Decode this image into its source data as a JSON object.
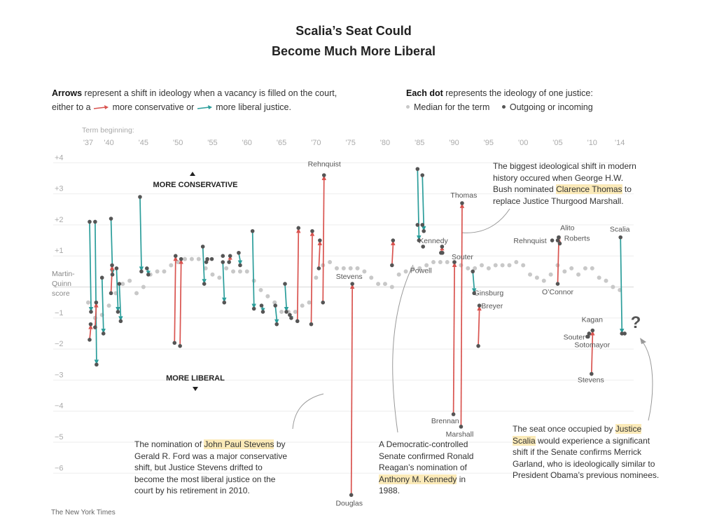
{
  "title_line1": "Scalia’s Seat Could",
  "title_line2": "Become Much More Liberal",
  "legend": {
    "arrows_bold": "Arrows",
    "arrows_text1": " represent a shift in ideology when a vacancy is filled on the court,",
    "arrows_text2a": "either to a",
    "arrows_conservative": "more conservative or",
    "arrows_liberal": "more liberal justice.",
    "dots_bold": "Each dot",
    "dots_text": " represents the ideology of one justice:",
    "median_label": "Median for the term",
    "outgoing_label": "Outgoing or incoming"
  },
  "colors": {
    "conservative": "#d9534f",
    "liberal": "#2a9d9a",
    "median_dot": "#c8c8c8",
    "justice_dot": "#555555"
  },
  "annotations": {
    "thomas_note_pre": "The biggest ideological shift in modern history occured when George H.W. Bush nominated ",
    "thomas_note_hl": "Clarence Thomas",
    "thomas_note_post": " to replace Justice Thurgood Marshall.",
    "stevens_note_pre": "The nomination of ",
    "stevens_note_hl": "John Paul Stevens",
    "stevens_note_post": " by Gerald R. Ford was a major conservative shift, but Justice Stevens drifted to become the most liberal justice on the court by his retirement in 2010.",
    "kennedy_note_pre": "A Democratic-controlled Senate confirmed Ronald Reagan’s nomination of ",
    "kennedy_note_hl": "Anthony M. Kennedy",
    "kennedy_note_post": " in 1988.",
    "scalia_note_pre": "The seat once occupied by ",
    "scalia_note_hl": "Justice Scalia",
    "scalia_note_post": " would experience a significant shift if the Senate confirms Merrick Garland, who is ideologically similar to President Obama’s previous nominees."
  },
  "credit": "The New York Times",
  "chart_data": {
    "type": "scatter",
    "x_axis_title": "Term beginning:",
    "y_axis_title_line1": "Martin-",
    "y_axis_title_line2": "Quinn",
    "y_axis_title_line3": "score",
    "more_conservative": "MORE CONSERVATIVE",
    "more_liberal": "MORE LIBERAL",
    "question_mark": "?",
    "x_range": [
      1937,
      2015
    ],
    "y_range": [
      -6.3,
      4.2
    ],
    "x_ticks": [
      {
        "year": 1937,
        "label": "'37"
      },
      {
        "year": 1940,
        "label": "'40"
      },
      {
        "year": 1945,
        "label": "'45"
      },
      {
        "year": 1950,
        "label": "'50"
      },
      {
        "year": 1955,
        "label": "'55"
      },
      {
        "year": 1960,
        "label": "'60"
      },
      {
        "year": 1965,
        "label": "'65"
      },
      {
        "year": 1970,
        "label": "'70"
      },
      {
        "year": 1975,
        "label": "'75"
      },
      {
        "year": 1980,
        "label": "'80"
      },
      {
        "year": 1985,
        "label": "'85"
      },
      {
        "year": 1990,
        "label": "'90"
      },
      {
        "year": 1995,
        "label": "'95"
      },
      {
        "year": 2000,
        "label": "'00"
      },
      {
        "year": 2005,
        "label": "'05"
      },
      {
        "year": 2010,
        "label": "'10"
      },
      {
        "year": 2014,
        "label": "'14"
      }
    ],
    "y_ticks": [
      {
        "value": 4,
        "label": "+4"
      },
      {
        "value": 3,
        "label": "+3"
      },
      {
        "value": 2,
        "label": "+2"
      },
      {
        "value": 1,
        "label": "+1"
      },
      {
        "value": -1,
        "label": "−1"
      },
      {
        "value": -2,
        "label": "−2"
      },
      {
        "value": -3,
        "label": "−3"
      },
      {
        "value": -4,
        "label": "−4"
      },
      {
        "value": -5,
        "label": "−5"
      },
      {
        "value": -6,
        "label": "−6"
      }
    ],
    "median": [
      [
        1937,
        -0.5
      ],
      [
        1938,
        -1.0
      ],
      [
        1939,
        -0.9
      ],
      [
        1940,
        -0.6
      ],
      [
        1941,
        -0.2
      ],
      [
        1942,
        0.1
      ],
      [
        1943,
        0.2
      ],
      [
        1944,
        -0.2
      ],
      [
        1945,
        0.0
      ],
      [
        1946,
        0.4
      ],
      [
        1947,
        0.5
      ],
      [
        1948,
        0.5
      ],
      [
        1949,
        0.7
      ],
      [
        1950,
        0.8
      ],
      [
        1951,
        0.9
      ],
      [
        1952,
        0.9
      ],
      [
        1953,
        0.9
      ],
      [
        1954,
        0.6
      ],
      [
        1955,
        0.4
      ],
      [
        1956,
        0.3
      ],
      [
        1957,
        0.6
      ],
      [
        1958,
        0.5
      ],
      [
        1959,
        0.5
      ],
      [
        1960,
        0.5
      ],
      [
        1961,
        0.2
      ],
      [
        1962,
        -0.1
      ],
      [
        1963,
        -0.3
      ],
      [
        1964,
        -0.5
      ],
      [
        1965,
        -0.8
      ],
      [
        1966,
        -0.8
      ],
      [
        1967,
        -0.8
      ],
      [
        1968,
        -0.6
      ],
      [
        1969,
        -0.5
      ],
      [
        1970,
        0.3
      ],
      [
        1971,
        0.7
      ],
      [
        1972,
        0.8
      ],
      [
        1973,
        0.6
      ],
      [
        1974,
        0.6
      ],
      [
        1975,
        0.6
      ],
      [
        1976,
        0.6
      ],
      [
        1977,
        0.5
      ],
      [
        1978,
        0.3
      ],
      [
        1979,
        0.1
      ],
      [
        1980,
        0.1
      ],
      [
        1981,
        0.0
      ],
      [
        1982,
        0.4
      ],
      [
        1983,
        0.5
      ],
      [
        1984,
        0.6
      ],
      [
        1985,
        0.6
      ],
      [
        1986,
        0.7
      ],
      [
        1987,
        0.8
      ],
      [
        1988,
        0.8
      ],
      [
        1989,
        0.8
      ],
      [
        1990,
        0.8
      ],
      [
        1991,
        0.7
      ],
      [
        1992,
        0.6
      ],
      [
        1993,
        0.6
      ],
      [
        1994,
        0.7
      ],
      [
        1995,
        0.6
      ],
      [
        1996,
        0.7
      ],
      [
        1997,
        0.7
      ],
      [
        1998,
        0.7
      ],
      [
        1999,
        0.8
      ],
      [
        2000,
        0.7
      ],
      [
        2001,
        0.4
      ],
      [
        2002,
        0.3
      ],
      [
        2003,
        0.2
      ],
      [
        2004,
        0.4
      ],
      [
        2005,
        0.7
      ],
      [
        2006,
        0.5
      ],
      [
        2007,
        0.6
      ],
      [
        2008,
        0.4
      ],
      [
        2009,
        0.6
      ],
      [
        2010,
        0.6
      ],
      [
        2011,
        0.3
      ],
      [
        2012,
        0.2
      ],
      [
        2013,
        0.0
      ],
      [
        2014,
        -0.1
      ]
    ],
    "arrows": [
      {
        "dir": "liberal",
        "x": 1937.2,
        "y1": 2.1,
        "y2": -0.8
      },
      {
        "dir": "conservative",
        "x": 1937.2,
        "y1": -1.7,
        "y2": -1.2
      },
      {
        "dir": "liberal",
        "x": 1938,
        "y1": 2.1,
        "y2": -2.5
      },
      {
        "dir": "conservative",
        "x": 1938,
        "y1": -1.3,
        "y2": -0.5
      },
      {
        "dir": "liberal",
        "x": 1939,
        "y1": 0.3,
        "y2": -1.5
      },
      {
        "dir": "liberal",
        "x": 1940.3,
        "y1": 2.2,
        "y2": 0.4
      },
      {
        "dir": "conservative",
        "x": 1940.3,
        "y1": -0.2,
        "y2": 0.7
      },
      {
        "dir": "liberal",
        "x": 1941.1,
        "y1": 0.6,
        "y2": -0.8
      },
      {
        "dir": "liberal",
        "x": 1941.5,
        "y1": 0.1,
        "y2": -1.1
      },
      {
        "dir": "liberal",
        "x": 1944.5,
        "y1": 2.9,
        "y2": 0.5
      },
      {
        "dir": "liberal",
        "x": 1945.5,
        "y1": 0.6,
        "y2": 0.4
      },
      {
        "dir": "conservative",
        "x": 1949.5,
        "y1": -1.8,
        "y2": 1.0
      },
      {
        "dir": "conservative",
        "x": 1950.3,
        "y1": -1.9,
        "y2": 0.9
      },
      {
        "dir": "liberal",
        "x": 1953.6,
        "y1": 1.3,
        "y2": 0.1
      },
      {
        "dir": "conservative",
        "x": 1954.1,
        "y1": 0.8,
        "y2": 0.9
      },
      {
        "dir": "liberal",
        "x": 1956.5,
        "y1": 0.8,
        "y2": -0.5
      },
      {
        "dir": "conservative",
        "x": 1957.4,
        "y1": 0.8,
        "y2": 1.0
      },
      {
        "dir": "liberal",
        "x": 1958.8,
        "y1": 1.1,
        "y2": 0.7
      },
      {
        "dir": "liberal",
        "x": 1960.8,
        "y1": 1.8,
        "y2": -0.7
      },
      {
        "dir": "liberal",
        "x": 1962.1,
        "y1": -0.6,
        "y2": -0.8
      },
      {
        "dir": "liberal",
        "x": 1964.1,
        "y1": -0.6,
        "y2": -1.2
      },
      {
        "dir": "liberal",
        "x": 1965.5,
        "y1": 0.1,
        "y2": -0.8
      },
      {
        "dir": "liberal",
        "x": 1966.2,
        "y1": -0.9,
        "y2": -1.0
      },
      {
        "dir": "conservative",
        "x": 1967.3,
        "y1": -1.1,
        "y2": 1.9
      },
      {
        "dir": "conservative",
        "x": 1969.3,
        "y1": -1.2,
        "y2": 1.8
      },
      {
        "dir": "conservative",
        "x": 1971,
        "y1": -0.5,
        "y2": 3.6
      },
      {
        "dir": "conservative",
        "x": 1970.4,
        "y1": 0.6,
        "y2": 1.5
      },
      {
        "dir": "conservative",
        "x": 1975.1,
        "y1": -6.7,
        "y2": 0.1
      },
      {
        "dir": "conservative",
        "x": 1981,
        "y1": 0.7,
        "y2": 1.5
      },
      {
        "dir": "liberal",
        "x": 1984.7,
        "y1": 3.8,
        "y2": 1.5
      },
      {
        "dir": "liberal",
        "x": 1985.4,
        "y1": 3.6,
        "y2": 1.8
      },
      {
        "dir": "conservative",
        "x": 1988.1,
        "y1": 1.1,
        "y2": 1.3
      },
      {
        "dir": "conservative",
        "x": 1989.9,
        "y1": -4.1,
        "y2": 0.8
      },
      {
        "dir": "conservative",
        "x": 1991,
        "y1": -4.5,
        "y2": 2.7
      },
      {
        "dir": "liberal",
        "x": 1992.7,
        "y1": 0.5,
        "y2": -0.2
      },
      {
        "dir": "conservative",
        "x": 1993.5,
        "y1": -1.9,
        "y2": -0.6
      },
      {
        "dir": "conservative",
        "x": 2005,
        "y1": 1.5,
        "y2": 1.6
      },
      {
        "dir": "conservative",
        "x": 2005,
        "y1": 0.1,
        "y2": 1.6
      },
      {
        "dir": "conservative",
        "x": 2009.4,
        "y1": -1.6,
        "y2": -1.5
      },
      {
        "dir": "conservative",
        "x": 2009.9,
        "y1": -2.8,
        "y2": -1.4
      },
      {
        "dir": "liberal",
        "x": 2014.1,
        "y1": 1.6,
        "y2": -1.5
      }
    ],
    "extra_dots": [
      [
        1954.9,
        0.9
      ],
      [
        1956.5,
        1.0
      ],
      [
        1984.7,
        2.0
      ],
      [
        1985.4,
        2.0
      ],
      [
        1985.5,
        1.3
      ],
      [
        1988.3,
        1.1
      ],
      [
        2004.2,
        1.5
      ],
      [
        2005.3,
        1.4
      ],
      [
        2009.3,
        -1.6
      ],
      [
        2014.7,
        -1.5
      ]
    ],
    "labels": [
      {
        "text": "Rehnquist",
        "x": 1971.2,
        "y": 3.7,
        "anchor": "middle",
        "dy": -8
      },
      {
        "text": "Stevens",
        "x": 1974.8,
        "y": 0.1,
        "anchor": "middle",
        "dy": -7
      },
      {
        "text": "Douglas",
        "x": 1974.8,
        "y": -6.7,
        "anchor": "middle",
        "dy": 15
      },
      {
        "text": "Powell",
        "x": 1985.2,
        "y": 0.5,
        "anchor": "middle",
        "dy": 2
      },
      {
        "text": "Kennedy",
        "x": 1987,
        "y": 1.3,
        "anchor": "middle",
        "dy": -5
      },
      {
        "text": "Thomas",
        "x": 1991.4,
        "y": 2.7,
        "anchor": "middle",
        "dy": -8
      },
      {
        "text": "Souter",
        "x": 1991.2,
        "y": 0.8,
        "anchor": "middle",
        "dy": -4
      },
      {
        "text": "Brennan",
        "x": 1988.7,
        "y": -4.1,
        "anchor": "middle",
        "dy": 13
      },
      {
        "text": "Marshall",
        "x": 1990.8,
        "y": -4.5,
        "anchor": "middle",
        "dy": 14
      },
      {
        "text": "Ginsburg",
        "x": 1995,
        "y": -0.2,
        "anchor": "middle",
        "dy": 3
      },
      {
        "text": "Breyer",
        "x": 1995.5,
        "y": -0.6,
        "anchor": "middle",
        "dy": 4
      },
      {
        "text": "Rehnquist",
        "x": 2003.4,
        "y": 1.5,
        "anchor": "end",
        "dy": 4
      },
      {
        "text": "Alito",
        "x": 2006.4,
        "y": 1.6,
        "anchor": "middle",
        "dy": -10
      },
      {
        "text": "Roberts",
        "x": 2007.8,
        "y": 1.6,
        "anchor": "middle",
        "dy": 5
      },
      {
        "text": "O’Connor",
        "x": 2005,
        "y": 0.1,
        "anchor": "middle",
        "dy": 15
      },
      {
        "text": "Scalia",
        "x": 2014,
        "y": 1.6,
        "anchor": "middle",
        "dy": -8
      },
      {
        "text": "Kagan",
        "x": 2010,
        "y": -1.4,
        "anchor": "middle",
        "dy": -12
      },
      {
        "text": "Souter",
        "x": 2007.4,
        "y": -1.6,
        "anchor": "middle",
        "dy": 4
      },
      {
        "text": "Sotomayor",
        "x": 2010,
        "y": -1.6,
        "anchor": "middle",
        "dy": 15
      },
      {
        "text": "Stevens",
        "x": 2009.8,
        "y": -2.8,
        "anchor": "middle",
        "dy": 12
      }
    ]
  }
}
